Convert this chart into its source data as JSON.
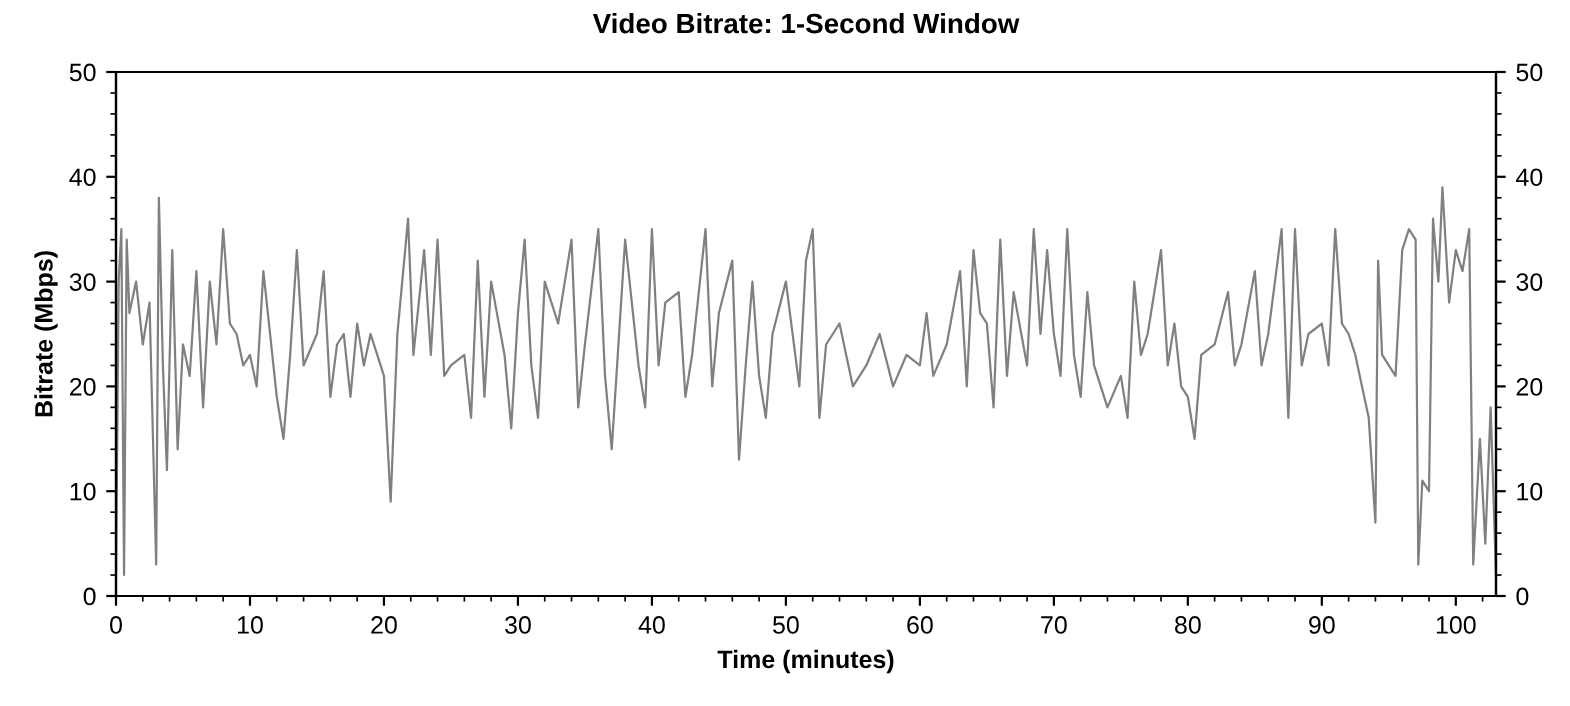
{
  "chart_data": {
    "type": "line",
    "title": "Video Bitrate: 1-Second Window",
    "xlabel": "Time (minutes)",
    "ylabel": "Bitrate (Mbps)",
    "xlim": [
      0,
      103
    ],
    "xticks": [
      0,
      10,
      20,
      30,
      40,
      50,
      60,
      70,
      80,
      90,
      100
    ],
    "ylim": [
      0,
      50
    ],
    "yticks": [
      0,
      10,
      20,
      30,
      40,
      50
    ],
    "y2lim": [
      0,
      50
    ],
    "y2ticks": [
      0,
      10,
      20,
      30,
      40,
      50
    ],
    "grid": false,
    "legend": false,
    "marker": "none",
    "line_style": "solid",
    "series": [
      {
        "color": "#808080",
        "x": [
          0,
          0.2,
          0.4,
          0.6,
          0.8,
          1,
          1.5,
          2,
          2.5,
          3,
          3.2,
          3.5,
          3.8,
          4.2,
          4.6,
          5,
          5.5,
          6,
          6.5,
          7,
          7.5,
          8,
          8.5,
          9,
          9.5,
          10,
          10.5,
          11,
          12,
          12.5,
          13,
          13.5,
          14,
          15,
          15.5,
          16,
          16.5,
          17,
          17.5,
          18,
          18.5,
          19,
          20,
          20.5,
          21,
          21.8,
          22.2,
          23,
          23.5,
          24,
          24.5,
          25,
          26,
          26.5,
          27,
          27.5,
          28,
          29,
          29.5,
          30,
          30.5,
          31,
          31.5,
          32,
          33,
          34,
          34.5,
          35,
          36,
          36.5,
          37,
          37.5,
          38,
          39,
          39.5,
          40,
          40.5,
          41,
          42,
          42.5,
          43,
          44,
          44.5,
          45,
          46,
          46.5,
          47,
          47.5,
          48,
          48.5,
          49,
          50,
          51,
          51.5,
          52,
          52.5,
          53,
          54,
          55,
          56,
          57,
          58,
          59,
          60,
          60.5,
          61,
          62,
          63,
          63.5,
          64,
          64.5,
          65,
          65.5,
          66,
          66.5,
          67,
          68,
          68.5,
          69,
          69.5,
          70,
          70.5,
          71,
          71.5,
          72,
          72.5,
          73,
          74,
          75,
          75.5,
          76,
          76.5,
          77,
          78,
          78.5,
          79,
          79.5,
          80,
          80.5,
          81,
          82,
          83,
          83.5,
          84,
          85,
          85.5,
          86,
          87,
          87.5,
          88,
          88.5,
          89,
          90,
          90.5,
          91,
          91.5,
          92,
          92.5,
          93,
          93.5,
          94,
          94.2,
          94.5,
          95,
          95.5,
          96,
          96.5,
          97,
          97.2,
          97.5,
          98,
          98.3,
          98.7,
          99,
          99.5,
          100,
          100.5,
          101,
          101.3,
          101.8,
          102.2,
          102.6,
          103
        ],
        "values": [
          2,
          30,
          35,
          2,
          34,
          27,
          30,
          24,
          28,
          3,
          38,
          22,
          12,
          33,
          14,
          24,
          21,
          31,
          18,
          30,
          24,
          35,
          26,
          25,
          22,
          23,
          20,
          31,
          19,
          15,
          23,
          33,
          22,
          25,
          31,
          19,
          24,
          25,
          19,
          26,
          22,
          25,
          21,
          9,
          25,
          36,
          23,
          33,
          23,
          34,
          21,
          22,
          23,
          17,
          32,
          19,
          30,
          23,
          16,
          27,
          34,
          22,
          17,
          30,
          26,
          34,
          18,
          24,
          35,
          21,
          14,
          24,
          34,
          22,
          18,
          35,
          22,
          28,
          29,
          19,
          23,
          35,
          20,
          27,
          32,
          13,
          22,
          30,
          21,
          17,
          25,
          30,
          20,
          32,
          35,
          17,
          24,
          26,
          20,
          22,
          25,
          20,
          23,
          22,
          27,
          21,
          24,
          31,
          20,
          33,
          27,
          26,
          18,
          34,
          21,
          29,
          22,
          35,
          25,
          33,
          25,
          21,
          35,
          23,
          19,
          29,
          22,
          18,
          21,
          17,
          30,
          23,
          25,
          33,
          22,
          26,
          20,
          19,
          15,
          23,
          24,
          29,
          22,
          24,
          31,
          22,
          25,
          35,
          17,
          35,
          22,
          25,
          26,
          22,
          35,
          26,
          25,
          23,
          20,
          17,
          7,
          32,
          23,
          22,
          21,
          33,
          35,
          34,
          3,
          11,
          10,
          36,
          30,
          39,
          28,
          33,
          31,
          35,
          3,
          15,
          5,
          18,
          2
        ]
      }
    ]
  }
}
